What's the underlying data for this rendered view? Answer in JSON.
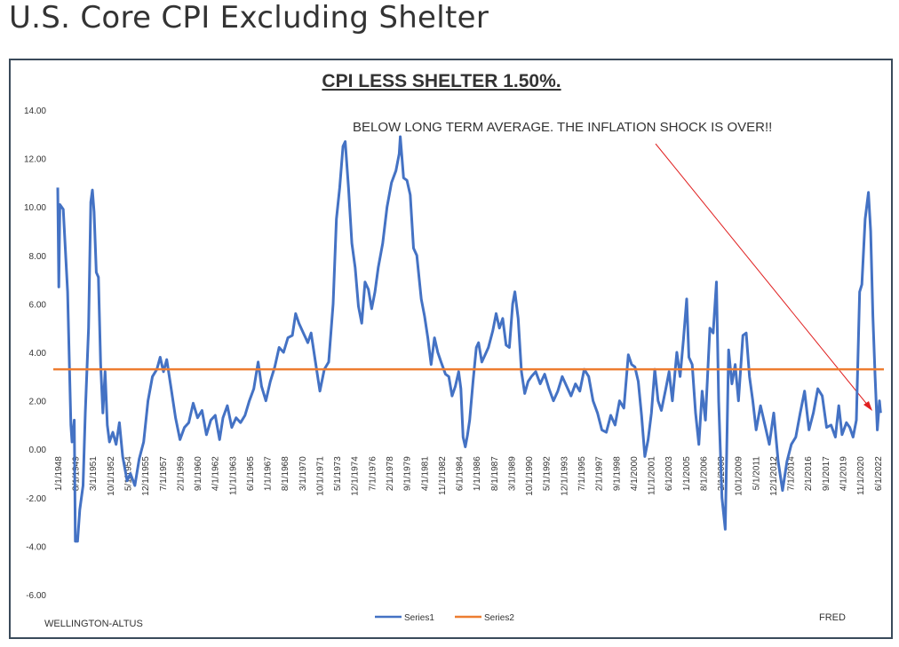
{
  "page_title": "U.S. Core CPI Excluding Shelter",
  "chart_data": {
    "type": "line",
    "title": "CPI LESS SHELTER 1.50%.",
    "annotation": "BELOW LONG TERM AVERAGE. THE INFLATION SHOCK IS OVER!!",
    "source_left": "WELLINGTON-ALTUS",
    "source_right": "FRED",
    "xlim": [
      1947.6,
      2023.0
    ],
    "ylim": [
      -6,
      14
    ],
    "grid": false,
    "legend": "bottom",
    "yticks": [
      {
        "value": 14,
        "label": "14.00"
      },
      {
        "value": 12,
        "label": "12.00"
      },
      {
        "value": 10,
        "label": "10.00"
      },
      {
        "value": 8,
        "label": "8.00"
      },
      {
        "value": 6,
        "label": "6.00"
      },
      {
        "value": 4,
        "label": "4.00"
      },
      {
        "value": 2,
        "label": "2.00"
      },
      {
        "value": 0,
        "label": "0.00"
      },
      {
        "value": -2,
        "label": "-2.00"
      },
      {
        "value": -4,
        "label": "-4.00"
      },
      {
        "value": -6,
        "label": "-6.00"
      }
    ],
    "xticks": [
      {
        "value": 1948.0,
        "label": "1/1/1948"
      },
      {
        "value": 1949.583,
        "label": "8/1/1949"
      },
      {
        "value": 1951.167,
        "label": "3/1/1951"
      },
      {
        "value": 1952.75,
        "label": "10/1/1952"
      },
      {
        "value": 1954.333,
        "label": "5/1/1954"
      },
      {
        "value": 1955.917,
        "label": "12/1/1955"
      },
      {
        "value": 1957.5,
        "label": "7/1/1957"
      },
      {
        "value": 1959.083,
        "label": "2/1/1959"
      },
      {
        "value": 1960.667,
        "label": "9/1/1960"
      },
      {
        "value": 1962.25,
        "label": "4/1/1962"
      },
      {
        "value": 1963.833,
        "label": "11/1/1963"
      },
      {
        "value": 1965.417,
        "label": "6/1/1965"
      },
      {
        "value": 1967.0,
        "label": "1/1/1967"
      },
      {
        "value": 1968.583,
        "label": "8/1/1968"
      },
      {
        "value": 1970.167,
        "label": "3/1/1970"
      },
      {
        "value": 1971.75,
        "label": "10/1/1971"
      },
      {
        "value": 1973.333,
        "label": "5/1/1973"
      },
      {
        "value": 1974.917,
        "label": "12/1/1974"
      },
      {
        "value": 1976.5,
        "label": "7/1/1976"
      },
      {
        "value": 1978.083,
        "label": "2/1/1978"
      },
      {
        "value": 1979.667,
        "label": "9/1/1979"
      },
      {
        "value": 1981.25,
        "label": "4/1/1981"
      },
      {
        "value": 1982.833,
        "label": "11/1/1982"
      },
      {
        "value": 1984.417,
        "label": "6/1/1984"
      },
      {
        "value": 1986.0,
        "label": "1/1/1986"
      },
      {
        "value": 1987.583,
        "label": "8/1/1987"
      },
      {
        "value": 1989.167,
        "label": "3/1/1989"
      },
      {
        "value": 1990.75,
        "label": "10/1/1990"
      },
      {
        "value": 1992.333,
        "label": "5/1/1992"
      },
      {
        "value": 1993.917,
        "label": "12/1/1993"
      },
      {
        "value": 1995.5,
        "label": "7/1/1995"
      },
      {
        "value": 1997.083,
        "label": "2/1/1997"
      },
      {
        "value": 1998.667,
        "label": "9/1/1998"
      },
      {
        "value": 2000.25,
        "label": "4/1/2000"
      },
      {
        "value": 2001.833,
        "label": "11/1/2001"
      },
      {
        "value": 2003.417,
        "label": "6/1/2003"
      },
      {
        "value": 2005.0,
        "label": "1/1/2005"
      },
      {
        "value": 2006.583,
        "label": "8/1/2006"
      },
      {
        "value": 2008.167,
        "label": "3/1/2008"
      },
      {
        "value": 2009.75,
        "label": "10/1/2009"
      },
      {
        "value": 2011.333,
        "label": "5/1/2011"
      },
      {
        "value": 2012.917,
        "label": "12/1/2012"
      },
      {
        "value": 2014.5,
        "label": "7/1/2014"
      },
      {
        "value": 2016.083,
        "label": "2/1/2016"
      },
      {
        "value": 2017.667,
        "label": "9/1/2017"
      },
      {
        "value": 2019.25,
        "label": "4/1/2019"
      },
      {
        "value": 2020.833,
        "label": "11/1/2020"
      },
      {
        "value": 2022.417,
        "label": "6/1/2022"
      }
    ],
    "series": [
      {
        "name": "Series1",
        "color": "#4472c4",
        "x": [
          1948.0,
          1948.1,
          1948.2,
          1948.5,
          1948.9,
          1949.2,
          1949.3,
          1949.5,
          1949.6,
          1949.8,
          1950.0,
          1950.3,
          1950.5,
          1950.8,
          1951.0,
          1951.15,
          1951.3,
          1951.5,
          1951.7,
          1951.9,
          1952.1,
          1952.3,
          1952.5,
          1952.7,
          1953.0,
          1953.3,
          1953.6,
          1953.9,
          1954.3,
          1954.6,
          1955.0,
          1955.4,
          1955.8,
          1956.2,
          1956.6,
          1957.0,
          1957.3,
          1957.6,
          1957.9,
          1958.3,
          1958.7,
          1959.1,
          1959.5,
          1959.9,
          1960.3,
          1960.7,
          1961.1,
          1961.5,
          1961.9,
          1962.3,
          1962.7,
          1963.0,
          1963.4,
          1963.8,
          1964.2,
          1964.6,
          1965.0,
          1965.4,
          1965.8,
          1966.2,
          1966.5,
          1966.9,
          1967.3,
          1967.7,
          1968.1,
          1968.5,
          1968.9,
          1969.3,
          1969.6,
          1969.9,
          1970.3,
          1970.7,
          1971.0,
          1971.4,
          1971.8,
          1972.2,
          1972.6,
          1973.0,
          1973.3,
          1973.6,
          1973.9,
          1974.1,
          1974.4,
          1974.7,
          1975.0,
          1975.3,
          1975.6,
          1975.9,
          1976.2,
          1976.5,
          1976.8,
          1977.1,
          1977.5,
          1977.9,
          1978.3,
          1978.7,
          1979.0,
          1979.1,
          1979.4,
          1979.7,
          1980.0,
          1980.3,
          1980.6,
          1981.0,
          1981.3,
          1981.6,
          1981.9,
          1982.2,
          1982.5,
          1982.8,
          1983.2,
          1983.5,
          1983.8,
          1984.1,
          1984.4,
          1984.6,
          1984.8,
          1985.0,
          1985.2,
          1985.4,
          1985.7,
          1986.0,
          1986.2,
          1986.5,
          1986.8,
          1987.1,
          1987.5,
          1987.8,
          1988.1,
          1988.4,
          1988.7,
          1989.0,
          1989.3,
          1989.5,
          1989.8,
          1990.1,
          1990.4,
          1990.7,
          1991.0,
          1991.4,
          1991.8,
          1992.2,
          1992.6,
          1993.0,
          1993.4,
          1993.8,
          1994.2,
          1994.6,
          1995.0,
          1995.4,
          1995.8,
          1996.2,
          1996.6,
          1997.0,
          1997.4,
          1997.8,
          1998.2,
          1998.6,
          1999.0,
          1999.4,
          1999.8,
          2000.1,
          2000.4,
          2000.7,
          2001.0,
          2001.3,
          2001.6,
          2001.9,
          2002.2,
          2002.5,
          2002.8,
          2003.2,
          2003.5,
          2003.8,
          2004.2,
          2004.5,
          2004.8,
          2005.1,
          2005.3,
          2005.6,
          2005.9,
          2006.2,
          2006.5,
          2006.8,
          2007.2,
          2007.5,
          2007.8,
          2008.0,
          2008.3,
          2008.6,
          2008.9,
          2009.2,
          2009.5,
          2009.8,
          2010.2,
          2010.5,
          2010.8,
          2011.1,
          2011.4,
          2011.8,
          2012.2,
          2012.6,
          2013.0,
          2013.4,
          2013.8,
          2014.2,
          2014.6,
          2015.0,
          2015.4,
          2015.8,
          2016.2,
          2016.6,
          2017.0,
          2017.4,
          2017.8,
          2018.2,
          2018.6,
          2018.9,
          2019.2,
          2019.6,
          2019.9,
          2020.2,
          2020.5,
          2020.8,
          2021.0,
          2021.3,
          2021.6,
          2021.8,
          2022.0,
          2022.2,
          2022.4,
          2022.6,
          2022.7
        ],
        "values": [
          10.8,
          6.7,
          10.1,
          9.9,
          6.5,
          1.0,
          0.3,
          1.2,
          -3.8,
          -3.8,
          -2.5,
          -1.5,
          1.5,
          5.0,
          10.2,
          10.7,
          9.8,
          7.3,
          7.1,
          3.5,
          1.5,
          3.2,
          1.0,
          0.3,
          0.7,
          0.2,
          1.1,
          -0.3,
          -1.3,
          -1.0,
          -1.5,
          -0.4,
          0.3,
          2.0,
          3.0,
          3.3,
          3.8,
          3.2,
          3.7,
          2.5,
          1.3,
          0.4,
          0.9,
          1.1,
          1.9,
          1.3,
          1.6,
          0.6,
          1.2,
          1.4,
          0.4,
          1.3,
          1.8,
          0.9,
          1.3,
          1.1,
          1.4,
          2.0,
          2.5,
          3.6,
          2.6,
          2.0,
          2.8,
          3.4,
          4.2,
          4.0,
          4.6,
          4.7,
          5.6,
          5.2,
          4.8,
          4.4,
          4.8,
          3.6,
          2.4,
          3.3,
          3.6,
          6.0,
          9.5,
          10.8,
          12.5,
          12.7,
          10.8,
          8.5,
          7.5,
          5.9,
          5.2,
          6.9,
          6.6,
          5.8,
          6.5,
          7.5,
          8.5,
          10.0,
          11.0,
          11.5,
          12.2,
          12.9,
          11.2,
          11.1,
          10.5,
          8.3,
          8.0,
          6.2,
          5.5,
          4.6,
          3.5,
          4.6,
          4.0,
          3.6,
          3.1,
          3.0,
          2.2,
          2.6,
          3.2,
          2.5,
          0.5,
          0.1,
          0.6,
          1.2,
          2.8,
          4.2,
          4.4,
          3.6,
          3.9,
          4.2,
          4.9,
          5.6,
          5.0,
          5.4,
          4.3,
          4.2,
          6.0,
          6.5,
          5.4,
          3.2,
          2.3,
          2.8,
          3.0,
          3.2,
          2.7,
          3.1,
          2.5,
          2.0,
          2.4,
          3.0,
          2.6,
          2.2,
          2.7,
          2.4,
          3.3,
          3.0,
          2.0,
          1.5,
          0.8,
          0.7,
          1.4,
          1.0,
          2.0,
          1.7,
          3.9,
          3.5,
          3.4,
          2.8,
          1.4,
          -0.3,
          0.4,
          1.5,
          3.3,
          2.0,
          1.6,
          2.5,
          3.2,
          2.0,
          4.0,
          3.0,
          4.5,
          6.2,
          3.8,
          3.5,
          1.5,
          0.2,
          2.4,
          1.2,
          5.0,
          4.8,
          6.9,
          2.0,
          -2.0,
          -3.3,
          4.1,
          2.7,
          3.5,
          2.0,
          4.7,
          4.8,
          3.0,
          2.0,
          0.8,
          1.8,
          1.0,
          0.2,
          1.5,
          -0.5,
          -1.7,
          -0.5,
          0.2,
          0.5,
          1.5,
          2.4,
          0.8,
          1.5,
          2.5,
          2.2,
          0.9,
          1.0,
          0.5,
          1.8,
          0.6,
          1.1,
          0.9,
          0.5,
          1.2,
          6.5,
          6.8,
          9.5,
          10.6,
          9.0,
          5.5,
          3.0,
          0.8,
          2.0,
          1.5
        ]
      },
      {
        "name": "Series2",
        "color": "#ed7d31",
        "x": [
          1947.6,
          2023.0
        ],
        "values": [
          3.3,
          3.3
        ]
      }
    ]
  }
}
